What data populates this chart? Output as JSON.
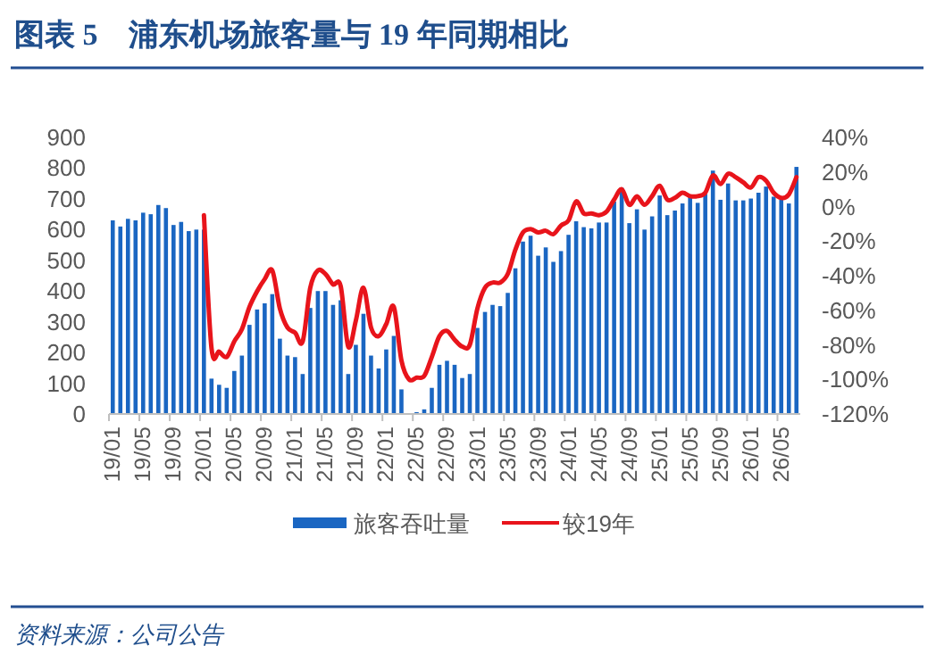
{
  "chart_data": {
    "type": "bar",
    "title": "图表 5　浦东机场旅客量与 19 年同期相比",
    "categories": [
      "19/01",
      null,
      null,
      null,
      "19/05",
      null,
      null,
      null,
      "19/09",
      null,
      null,
      null,
      "20/01",
      null,
      null,
      null,
      "20/05",
      null,
      null,
      null,
      "20/09",
      null,
      null,
      null,
      "21/01",
      null,
      null,
      null,
      "21/05",
      null,
      null,
      null,
      "21/09",
      null,
      null,
      null,
      "22/01",
      null,
      null,
      null,
      "22/05",
      null,
      null,
      null,
      "22/09",
      null,
      null,
      null,
      "23/01",
      null,
      null,
      null,
      "23/05",
      null,
      null,
      null,
      "23/09",
      null,
      null,
      null,
      "24/01",
      null,
      null,
      null,
      "24/05",
      null,
      null,
      null,
      "24/09",
      null,
      null,
      null,
      "25/01",
      null,
      null,
      null,
      "25/05",
      null,
      null,
      null,
      "25/09",
      null,
      null,
      null,
      "26/01",
      null,
      null,
      null,
      "26/05",
      null,
      null
    ],
    "series": [
      {
        "name": "旅客吞吐量",
        "color": "#1a66c2",
        "values": [
          630,
          610,
          635,
          630,
          655,
          650,
          680,
          670,
          615,
          625,
          595,
          600,
          600,
          115,
          95,
          85,
          140,
          190,
          290,
          340,
          360,
          390,
          245,
          190,
          185,
          130,
          345,
          400,
          400,
          355,
          370,
          130,
          225,
          326,
          190,
          148,
          210,
          254,
          80,
          0,
          6,
          15,
          85,
          160,
          173,
          160,
          117,
          130,
          280,
          332,
          355,
          351,
          394,
          474,
          561,
          580,
          515,
          542,
          495,
          530,
          583,
          627,
          608,
          604,
          623,
          623,
          691,
          736,
          621,
          666,
          600,
          643,
          711,
          647,
          662,
          685,
          707,
          687,
          716,
          792,
          697,
          750,
          695,
          695,
          701,
          720,
          740,
          707,
          697,
          685,
          804
        ]
      },
      {
        "name": "较19年",
        "type": "line",
        "axis": "y2",
        "color": "#e8141b",
        "values": [
          null,
          null,
          null,
          null,
          null,
          null,
          null,
          null,
          null,
          null,
          null,
          null,
          -5,
          -82,
          -84,
          -87,
          -78,
          -71,
          -58,
          -49,
          -42,
          -37,
          -59,
          -70,
          -73,
          -78,
          -47,
          -37,
          -39,
          -45,
          -46,
          -81,
          -66,
          -47,
          -70,
          -75,
          -68,
          -58,
          -89,
          -100,
          -99,
          -98,
          -87,
          -75,
          -72,
          -77,
          -81,
          -80,
          -59,
          -47,
          -44,
          -44,
          -39,
          -25,
          -15,
          -13,
          -15,
          -14,
          -16,
          -11,
          -8,
          3,
          -4,
          -4,
          -5,
          -3,
          4,
          10,
          1,
          6,
          1,
          6,
          12,
          4,
          5,
          8,
          6,
          6,
          8,
          18,
          13,
          19,
          17,
          14,
          11,
          17,
          15,
          8,
          5,
          7,
          17
        ]
      }
    ],
    "ylim": [
      0,
      900
    ],
    "yticks": [
      0,
      100,
      200,
      300,
      400,
      500,
      600,
      700,
      800,
      900
    ],
    "y2lim": [
      -120,
      40
    ],
    "y2ticks": [
      {
        "value": -120,
        "label": "-120%"
      },
      {
        "value": -100,
        "label": "-100%"
      },
      {
        "value": -80,
        "label": "-80%"
      },
      {
        "value": -60,
        "label": "-60%"
      },
      {
        "value": -40,
        "label": "-40%"
      },
      {
        "value": -20,
        "label": "-20%"
      },
      {
        "value": 0,
        "label": "0%"
      },
      {
        "value": 20,
        "label": "20%"
      },
      {
        "value": 40,
        "label": "40%"
      }
    ],
    "legend": "bottom",
    "annotations": [
      "资料来源：公司公告"
    ]
  }
}
